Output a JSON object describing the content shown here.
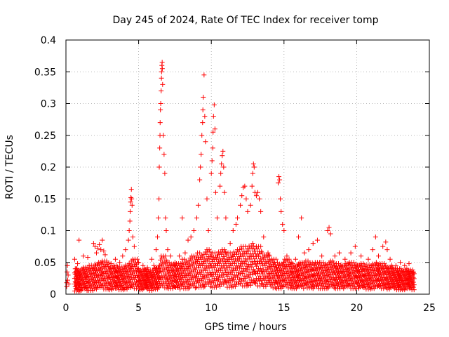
{
  "chart_data": {
    "type": "scatter",
    "title": "Day 245 of 2024, Rate Of TEC Index for receiver tomp",
    "xlabel": "GPS time / hours",
    "ylabel": "ROTI / TECUs",
    "xlim": [
      0,
      25
    ],
    "ylim": [
      0,
      0.4
    ],
    "x_ticks": [
      "0",
      "5",
      "10",
      "15",
      "20",
      "25"
    ],
    "y_ticks": [
      "0",
      "0.05",
      "0.1",
      "0.15",
      "0.2",
      "0.25",
      "0.3",
      "0.35",
      "0.4"
    ],
    "grid": true,
    "marker": "+",
    "series_color": "#ff0000",
    "series": [
      {
        "points": [
          [
            0.05,
            0.012
          ],
          [
            0.05,
            0.018
          ],
          [
            0.08,
            0.035
          ],
          [
            0.1,
            0.045
          ],
          [
            0.12,
            0.022
          ],
          [
            0.15,
            0.03
          ],
          [
            0.2,
            0.016
          ],
          [
            0.6,
            0.055
          ],
          [
            0.7,
            0.04
          ],
          [
            0.8,
            0.048
          ],
          [
            0.9,
            0.085
          ],
          [
            1.2,
            0.06
          ],
          [
            1.5,
            0.058
          ],
          [
            1.9,
            0.08
          ],
          [
            2.0,
            0.075
          ],
          [
            2.1,
            0.065
          ],
          [
            2.2,
            0.072
          ],
          [
            2.3,
            0.078
          ],
          [
            2.4,
            0.07
          ],
          [
            2.5,
            0.085
          ],
          [
            2.6,
            0.068
          ],
          [
            2.7,
            0.062
          ],
          [
            2.8,
            0.05
          ],
          [
            3.1,
            0.048
          ],
          [
            3.4,
            0.055
          ],
          [
            3.7,
            0.05
          ],
          [
            3.9,
            0.06
          ],
          [
            4.1,
            0.07
          ],
          [
            4.3,
            0.085
          ],
          [
            4.35,
            0.1
          ],
          [
            4.4,
            0.115
          ],
          [
            4.42,
            0.13
          ],
          [
            4.45,
            0.145
          ],
          [
            4.47,
            0.152
          ],
          [
            4.5,
            0.165
          ],
          [
            4.52,
            0.15
          ],
          [
            4.55,
            0.14
          ],
          [
            4.6,
            0.09
          ],
          [
            4.7,
            0.075
          ],
          [
            5.0,
            0.05
          ],
          [
            5.3,
            0.045
          ],
          [
            5.6,
            0.042
          ],
          [
            5.9,
            0.055
          ],
          [
            6.2,
            0.07
          ],
          [
            6.3,
            0.09
          ],
          [
            6.35,
            0.12
          ],
          [
            6.4,
            0.15
          ],
          [
            6.42,
            0.2
          ],
          [
            6.45,
            0.23
          ],
          [
            6.47,
            0.25
          ],
          [
            6.48,
            0.27
          ],
          [
            6.5,
            0.29
          ],
          [
            6.52,
            0.3
          ],
          [
            6.55,
            0.32
          ],
          [
            6.57,
            0.34
          ],
          [
            6.58,
            0.35
          ],
          [
            6.6,
            0.36
          ],
          [
            6.62,
            0.365
          ],
          [
            6.63,
            0.355
          ],
          [
            6.65,
            0.33
          ],
          [
            6.7,
            0.25
          ],
          [
            6.75,
            0.22
          ],
          [
            6.8,
            0.19
          ],
          [
            6.85,
            0.12
          ],
          [
            6.9,
            0.1
          ],
          [
            7.0,
            0.07
          ],
          [
            7.2,
            0.06
          ],
          [
            7.5,
            0.05
          ],
          [
            7.8,
            0.06
          ],
          [
            8.0,
            0.12
          ],
          [
            8.2,
            0.065
          ],
          [
            8.4,
            0.085
          ],
          [
            8.6,
            0.09
          ],
          [
            8.8,
            0.1
          ],
          [
            9.0,
            0.12
          ],
          [
            9.1,
            0.14
          ],
          [
            9.2,
            0.18
          ],
          [
            9.25,
            0.2
          ],
          [
            9.3,
            0.22
          ],
          [
            9.35,
            0.25
          ],
          [
            9.4,
            0.27
          ],
          [
            9.42,
            0.29
          ],
          [
            9.45,
            0.31
          ],
          [
            9.5,
            0.345
          ],
          [
            9.55,
            0.28
          ],
          [
            9.6,
            0.24
          ],
          [
            9.7,
            0.15
          ],
          [
            9.8,
            0.1
          ],
          [
            10.0,
            0.19
          ],
          [
            10.05,
            0.21
          ],
          [
            10.1,
            0.23
          ],
          [
            10.12,
            0.255
          ],
          [
            10.15,
            0.28
          ],
          [
            10.2,
            0.298
          ],
          [
            10.25,
            0.26
          ],
          [
            10.3,
            0.16
          ],
          [
            10.4,
            0.12
          ],
          [
            10.6,
            0.17
          ],
          [
            10.65,
            0.19
          ],
          [
            10.7,
            0.205
          ],
          [
            10.75,
            0.218
          ],
          [
            10.8,
            0.225
          ],
          [
            10.85,
            0.2
          ],
          [
            10.9,
            0.16
          ],
          [
            11.0,
            0.12
          ],
          [
            11.3,
            0.08
          ],
          [
            11.5,
            0.1
          ],
          [
            11.7,
            0.11
          ],
          [
            11.8,
            0.12
          ],
          [
            12.0,
            0.14
          ],
          [
            12.1,
            0.155
          ],
          [
            12.2,
            0.168
          ],
          [
            12.3,
            0.17
          ],
          [
            12.4,
            0.15
          ],
          [
            12.5,
            0.13
          ],
          [
            12.7,
            0.14
          ],
          [
            12.8,
            0.17
          ],
          [
            12.85,
            0.19
          ],
          [
            12.9,
            0.205
          ],
          [
            12.95,
            0.2
          ],
          [
            13.0,
            0.16
          ],
          [
            13.1,
            0.155
          ],
          [
            13.2,
            0.16
          ],
          [
            13.3,
            0.15
          ],
          [
            13.4,
            0.13
          ],
          [
            13.6,
            0.09
          ],
          [
            14.0,
            0.06
          ],
          [
            14.3,
            0.05
          ],
          [
            14.6,
            0.175
          ],
          [
            14.65,
            0.185
          ],
          [
            14.7,
            0.18
          ],
          [
            14.75,
            0.15
          ],
          [
            14.8,
            0.13
          ],
          [
            14.9,
            0.11
          ],
          [
            15.0,
            0.1
          ],
          [
            15.2,
            0.06
          ],
          [
            15.5,
            0.05
          ],
          [
            15.8,
            0.055
          ],
          [
            16.0,
            0.09
          ],
          [
            16.2,
            0.12
          ],
          [
            16.4,
            0.065
          ],
          [
            16.7,
            0.07
          ],
          [
            17.0,
            0.08
          ],
          [
            17.3,
            0.085
          ],
          [
            17.6,
            0.06
          ],
          [
            18.0,
            0.1
          ],
          [
            18.1,
            0.105
          ],
          [
            18.2,
            0.095
          ],
          [
            18.5,
            0.06
          ],
          [
            18.8,
            0.065
          ],
          [
            19.2,
            0.055
          ],
          [
            19.6,
            0.065
          ],
          [
            19.9,
            0.075
          ],
          [
            20.3,
            0.06
          ],
          [
            20.8,
            0.055
          ],
          [
            21.1,
            0.07
          ],
          [
            21.3,
            0.09
          ],
          [
            21.5,
            0.06
          ],
          [
            21.8,
            0.075
          ],
          [
            22.0,
            0.082
          ],
          [
            22.1,
            0.07
          ],
          [
            22.3,
            0.055
          ],
          [
            22.7,
            0.045
          ],
          [
            23.0,
            0.05
          ],
          [
            23.3,
            0.045
          ],
          [
            23.6,
            0.048
          ],
          [
            23.9,
            0.035
          ]
        ],
        "baseline_band": [
          [
            0.6,
            0.005,
            0.04
          ],
          [
            1.0,
            0.006,
            0.042
          ],
          [
            1.5,
            0.006,
            0.045
          ],
          [
            2.0,
            0.008,
            0.05
          ],
          [
            2.5,
            0.008,
            0.052
          ],
          [
            3.0,
            0.007,
            0.045
          ],
          [
            3.5,
            0.007,
            0.043
          ],
          [
            4.0,
            0.008,
            0.048
          ],
          [
            4.5,
            0.009,
            0.055
          ],
          [
            5.0,
            0.007,
            0.04
          ],
          [
            5.5,
            0.006,
            0.038
          ],
          [
            6.0,
            0.008,
            0.045
          ],
          [
            6.5,
            0.01,
            0.06
          ],
          [
            7.0,
            0.009,
            0.05
          ],
          [
            7.5,
            0.008,
            0.048
          ],
          [
            8.0,
            0.009,
            0.055
          ],
          [
            8.5,
            0.01,
            0.06
          ],
          [
            9.0,
            0.011,
            0.065
          ],
          [
            9.5,
            0.012,
            0.07
          ],
          [
            10.0,
            0.011,
            0.065
          ],
          [
            10.5,
            0.012,
            0.07
          ],
          [
            11.0,
            0.011,
            0.065
          ],
          [
            11.5,
            0.012,
            0.07
          ],
          [
            12.0,
            0.013,
            0.075
          ],
          [
            12.5,
            0.014,
            0.08
          ],
          [
            13.0,
            0.013,
            0.075
          ],
          [
            13.5,
            0.012,
            0.065
          ],
          [
            14.0,
            0.01,
            0.055
          ],
          [
            14.5,
            0.009,
            0.05
          ],
          [
            15.0,
            0.01,
            0.055
          ],
          [
            15.5,
            0.009,
            0.048
          ],
          [
            16.0,
            0.009,
            0.05
          ],
          [
            16.5,
            0.01,
            0.052
          ],
          [
            17.0,
            0.009,
            0.05
          ],
          [
            17.5,
            0.009,
            0.05
          ],
          [
            18.0,
            0.01,
            0.052
          ],
          [
            18.5,
            0.009,
            0.048
          ],
          [
            19.0,
            0.009,
            0.048
          ],
          [
            19.5,
            0.009,
            0.05
          ],
          [
            20.0,
            0.009,
            0.048
          ],
          [
            20.5,
            0.008,
            0.046
          ],
          [
            21.0,
            0.009,
            0.05
          ],
          [
            21.5,
            0.009,
            0.048
          ],
          [
            22.0,
            0.008,
            0.045
          ],
          [
            22.5,
            0.007,
            0.04
          ],
          [
            23.0,
            0.007,
            0.04
          ],
          [
            23.5,
            0.007,
            0.038
          ],
          [
            24.0,
            0.006,
            0.035
          ]
        ]
      }
    ]
  }
}
